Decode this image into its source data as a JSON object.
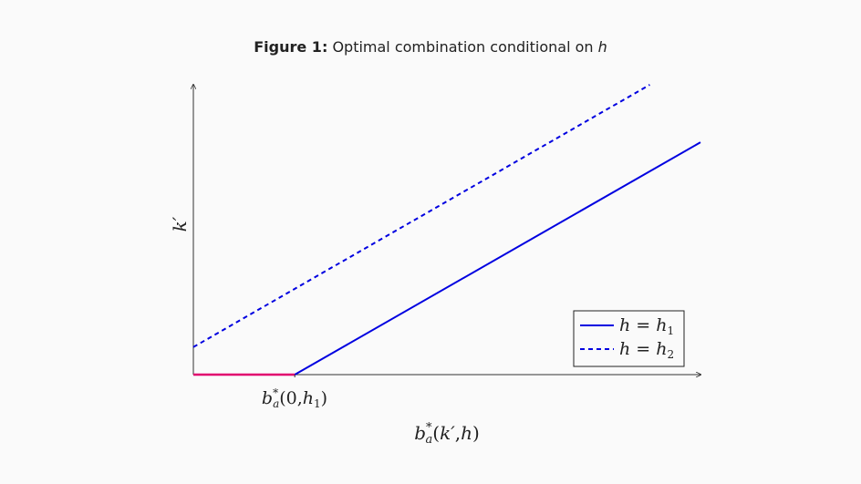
{
  "caption": {
    "label": "Figure 1:",
    "text": "Optimal combination conditional on",
    "variable": "h"
  },
  "chart_data": {
    "type": "line",
    "title": "Optimal combination conditional on h",
    "xlabel": "b*a(k′,h)",
    "ylabel": "k′",
    "x_tick_label": "b*a(0,h1)",
    "x_tick_value": 2,
    "xlim": [
      0,
      10
    ],
    "ylim": [
      0,
      5.8
    ],
    "grid": false,
    "legend_position": "bottom-right",
    "colors": {
      "series_blue": "#0000e0",
      "kink_segment": "#e0006e",
      "axes": "#333333"
    },
    "series": [
      {
        "name": "h = h1",
        "style": "solid",
        "color": "#0000e0",
        "x": [
          0,
          2,
          10
        ],
        "y": [
          0,
          0,
          4.65
        ]
      },
      {
        "name": "h = h2",
        "style": "dashed",
        "color": "#0000e0",
        "x": [
          0,
          9
        ],
        "y": [
          0.55,
          5.8
        ]
      }
    ],
    "highlight_segment": {
      "color": "#e0006e",
      "x": [
        0,
        2
      ],
      "y": [
        0,
        0
      ]
    },
    "legend": [
      {
        "label": "h = h1",
        "style": "solid"
      },
      {
        "label": "h = h2",
        "style": "dashed"
      }
    ]
  }
}
